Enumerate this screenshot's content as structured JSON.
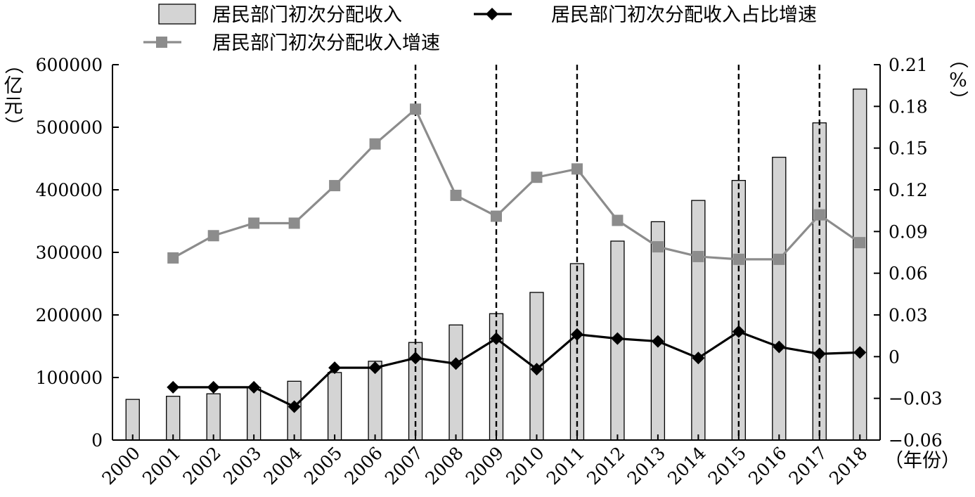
{
  "chart_data": {
    "type": "bar",
    "categories": [
      "2000",
      "2001",
      "2002",
      "2003",
      "2004",
      "2005",
      "2006",
      "2007",
      "2008",
      "2009",
      "2010",
      "2011",
      "2012",
      "2013",
      "2014",
      "2015",
      "2016",
      "2017",
      "2018"
    ],
    "xlabel": "（年份）",
    "left_axis": {
      "label": "（亿元）",
      "ylim": [
        0,
        600000
      ],
      "ticks": [
        "0",
        "100000",
        "200000",
        "300000",
        "400000",
        "500000",
        "600000"
      ]
    },
    "right_axis": {
      "label": "（%）",
      "ylim": [
        -0.06,
        0.21
      ],
      "ticks": [
        "−0.06",
        "−0.03",
        "0",
        "0.03",
        "0.06",
        "0.09",
        "0.12",
        "0.15",
        "0.18",
        "0.21"
      ]
    },
    "series": [
      {
        "name": "居民部门初次分配收入",
        "type": "bar",
        "axis": "left",
        "color": "#d4d4d4",
        "values": [
          65000,
          70000,
          74000,
          84000,
          94000,
          108000,
          126000,
          156000,
          184000,
          202000,
          236000,
          282000,
          318000,
          349000,
          383000,
          415000,
          452000,
          507000,
          561000
        ]
      },
      {
        "name": "居民部门初次分配收入占比增速",
        "type": "line",
        "axis": "right",
        "marker": "diamond",
        "color": "#000000",
        "values": [
          null,
          -0.022,
          -0.022,
          -0.022,
          -0.036,
          -0.008,
          -0.008,
          -0.001,
          -0.005,
          0.013,
          -0.009,
          0.016,
          0.013,
          0.011,
          -0.001,
          0.018,
          0.007,
          0.002,
          0.003
        ]
      },
      {
        "name": "居民部门初次分配收入增速",
        "type": "line",
        "axis": "right",
        "marker": "square",
        "color": "#8c8c8c",
        "values": [
          null,
          0.071,
          0.087,
          0.096,
          0.096,
          0.123,
          0.153,
          0.178,
          0.116,
          0.101,
          0.129,
          0.135,
          0.098,
          0.079,
          0.072,
          0.07,
          0.07,
          0.102,
          0.082
        ]
      }
    ],
    "reference_lines": [
      "2007",
      "2009",
      "2011",
      "2015",
      "2017"
    ],
    "legend_position": "top"
  }
}
